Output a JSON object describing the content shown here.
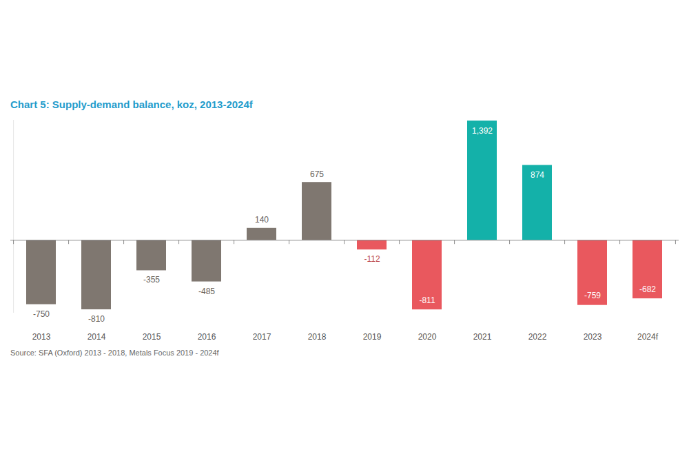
{
  "chart_data": {
    "type": "bar",
    "title": "Chart 5: Supply-demand balance, koz, 2013-2024f",
    "caption": "Source: SFA (Oxford) 2013 - 2018, Metals Focus 2019 - 2024f",
    "categories": [
      "2013",
      "2014",
      "2015",
      "2016",
      "2017",
      "2018",
      "2019",
      "2020",
      "2021",
      "2022",
      "2023",
      "2024f"
    ],
    "values": [
      -750,
      -810,
      -355,
      -485,
      140,
      675,
      -112,
      -811,
      1392,
      874,
      -759,
      -682
    ],
    "value_labels": [
      "-750",
      "-810",
      "-355",
      "-485",
      "140",
      "675",
      "-112",
      "-811",
      "1,392",
      "874",
      "-759",
      "-682"
    ],
    "colors": [
      "#7f7770",
      "#7f7770",
      "#7f7770",
      "#7f7770",
      "#7f7770",
      "#7f7770",
      "#e9585e",
      "#e9585e",
      "#14b1a9",
      "#14b1a9",
      "#e9585e",
      "#e9585e"
    ],
    "ylim": [
      -850,
      1400
    ],
    "data_labels": true,
    "tick_labels": "x",
    "grid": false
  }
}
